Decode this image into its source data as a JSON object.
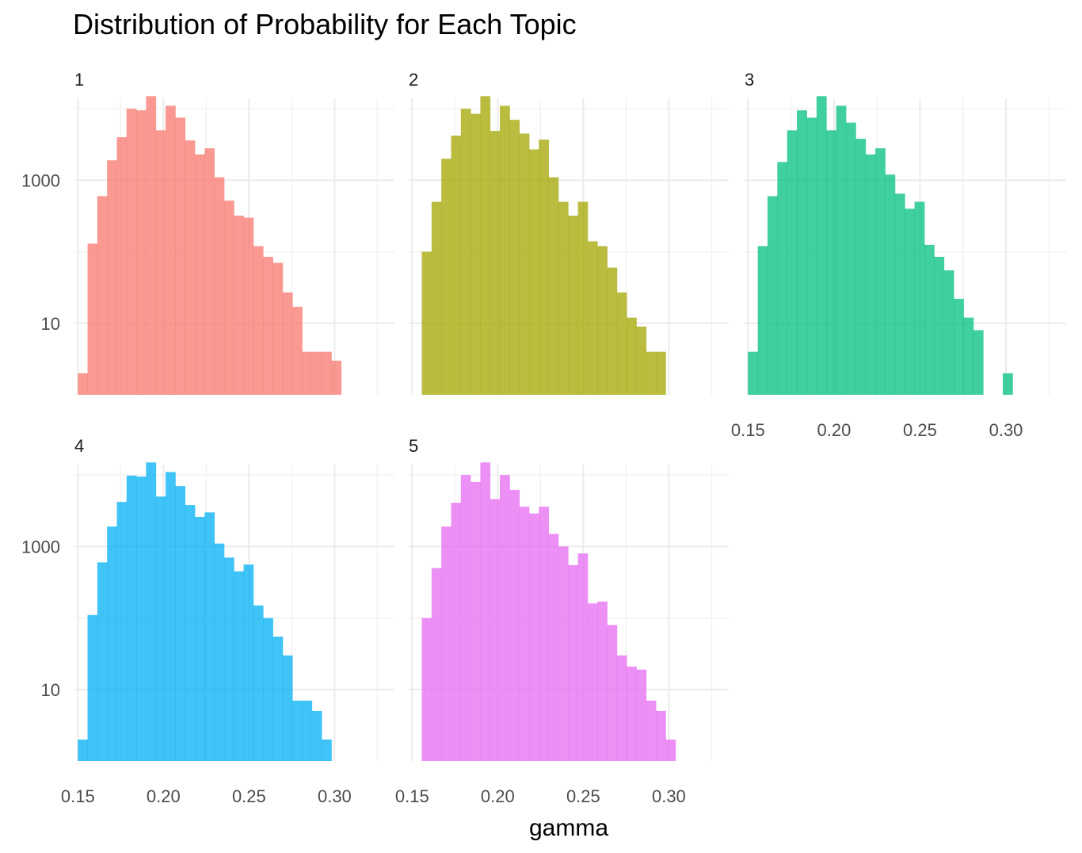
{
  "chart_data": {
    "type": "bar",
    "subtype": "faceted histogram",
    "title": "Distribution of Probability for Each Topic",
    "xlabel": "gamma",
    "ylabel": "",
    "y_scale": "log10",
    "xlim": [
      0.148,
      0.335
    ],
    "ylim": [
      1,
      14000
    ],
    "x_breaks": [
      0.15,
      0.2,
      0.25,
      0.3
    ],
    "x_tick_labels": [
      "0.15",
      "0.20",
      "0.25",
      "0.30"
    ],
    "y_breaks": [
      10,
      1000
    ],
    "y_tick_labels": [
      "10",
      "1000"
    ],
    "bin_width": 0.0057,
    "grid": true,
    "legend": "none",
    "facets": [
      {
        "label": "1",
        "color": "#F8766D",
        "bins": [
          {
            "x": 0.1528,
            "count": 2
          },
          {
            "x": 0.1585,
            "count": 130
          },
          {
            "x": 0.1642,
            "count": 600
          },
          {
            "x": 0.1699,
            "count": 1900
          },
          {
            "x": 0.1756,
            "count": 4000
          },
          {
            "x": 0.1813,
            "count": 10000
          },
          {
            "x": 0.187,
            "count": 9500
          },
          {
            "x": 0.1927,
            "count": 15000
          },
          {
            "x": 0.1984,
            "count": 5000
          },
          {
            "x": 0.2041,
            "count": 11000
          },
          {
            "x": 0.2098,
            "count": 7500
          },
          {
            "x": 0.2155,
            "count": 3600
          },
          {
            "x": 0.2212,
            "count": 2300
          },
          {
            "x": 0.2269,
            "count": 2800
          },
          {
            "x": 0.2326,
            "count": 1100
          },
          {
            "x": 0.2383,
            "count": 520
          },
          {
            "x": 0.244,
            "count": 320
          },
          {
            "x": 0.2497,
            "count": 300
          },
          {
            "x": 0.2554,
            "count": 120
          },
          {
            "x": 0.2611,
            "count": 85
          },
          {
            "x": 0.2668,
            "count": 70
          },
          {
            "x": 0.2725,
            "count": 27
          },
          {
            "x": 0.2782,
            "count": 17
          },
          {
            "x": 0.2839,
            "count": 4
          },
          {
            "x": 0.2896,
            "count": 4
          },
          {
            "x": 0.2953,
            "count": 4
          },
          {
            "x": 0.301,
            "count": 3
          }
        ]
      },
      {
        "label": "2",
        "color": "#A3A500",
        "bins": [
          {
            "x": 0.1585,
            "count": 100
          },
          {
            "x": 0.1642,
            "count": 500
          },
          {
            "x": 0.1699,
            "count": 2000
          },
          {
            "x": 0.1756,
            "count": 4200
          },
          {
            "x": 0.1813,
            "count": 10000
          },
          {
            "x": 0.187,
            "count": 8500
          },
          {
            "x": 0.1927,
            "count": 15000
          },
          {
            "x": 0.1984,
            "count": 4900
          },
          {
            "x": 0.2041,
            "count": 11000
          },
          {
            "x": 0.2098,
            "count": 7000
          },
          {
            "x": 0.2155,
            "count": 4500
          },
          {
            "x": 0.2212,
            "count": 2700
          },
          {
            "x": 0.2269,
            "count": 3700
          },
          {
            "x": 0.2326,
            "count": 1100
          },
          {
            "x": 0.2383,
            "count": 500
          },
          {
            "x": 0.244,
            "count": 320
          },
          {
            "x": 0.2497,
            "count": 500
          },
          {
            "x": 0.2554,
            "count": 140
          },
          {
            "x": 0.2611,
            "count": 120
          },
          {
            "x": 0.2668,
            "count": 60
          },
          {
            "x": 0.2725,
            "count": 27
          },
          {
            "x": 0.2782,
            "count": 12
          },
          {
            "x": 0.2839,
            "count": 9
          },
          {
            "x": 0.2896,
            "count": 4
          },
          {
            "x": 0.2953,
            "count": 4
          }
        ]
      },
      {
        "label": "3",
        "color": "#00BF7D",
        "bins": [
          {
            "x": 0.1528,
            "count": 4
          },
          {
            "x": 0.1585,
            "count": 120
          },
          {
            "x": 0.1642,
            "count": 600
          },
          {
            "x": 0.1699,
            "count": 1800
          },
          {
            "x": 0.1756,
            "count": 5000
          },
          {
            "x": 0.1813,
            "count": 9500
          },
          {
            "x": 0.187,
            "count": 7500
          },
          {
            "x": 0.1927,
            "count": 15000
          },
          {
            "x": 0.1984,
            "count": 5000
          },
          {
            "x": 0.2041,
            "count": 11000
          },
          {
            "x": 0.2098,
            "count": 6400
          },
          {
            "x": 0.2155,
            "count": 3800
          },
          {
            "x": 0.2212,
            "count": 2300
          },
          {
            "x": 0.2269,
            "count": 2800
          },
          {
            "x": 0.2326,
            "count": 1200
          },
          {
            "x": 0.2383,
            "count": 650
          },
          {
            "x": 0.244,
            "count": 400
          },
          {
            "x": 0.2497,
            "count": 500
          },
          {
            "x": 0.2554,
            "count": 125
          },
          {
            "x": 0.2611,
            "count": 85
          },
          {
            "x": 0.2668,
            "count": 55
          },
          {
            "x": 0.2725,
            "count": 22
          },
          {
            "x": 0.2782,
            "count": 12
          },
          {
            "x": 0.2839,
            "count": 8
          },
          {
            "x": 0.2896,
            "count": 0
          },
          {
            "x": 0.2953,
            "count": 0
          },
          {
            "x": 0.301,
            "count": 2
          }
        ]
      },
      {
        "label": "4",
        "color": "#00B0F6",
        "bins": [
          {
            "x": 0.1528,
            "count": 2
          },
          {
            "x": 0.1585,
            "count": 110
          },
          {
            "x": 0.1642,
            "count": 600
          },
          {
            "x": 0.1699,
            "count": 1900
          },
          {
            "x": 0.1756,
            "count": 4200
          },
          {
            "x": 0.1813,
            "count": 9800
          },
          {
            "x": 0.187,
            "count": 9500
          },
          {
            "x": 0.1927,
            "count": 15000
          },
          {
            "x": 0.1984,
            "count": 5000
          },
          {
            "x": 0.2041,
            "count": 11000
          },
          {
            "x": 0.2098,
            "count": 7000
          },
          {
            "x": 0.2155,
            "count": 3800
          },
          {
            "x": 0.2212,
            "count": 2600
          },
          {
            "x": 0.2269,
            "count": 3000
          },
          {
            "x": 0.2326,
            "count": 1100
          },
          {
            "x": 0.2383,
            "count": 700
          },
          {
            "x": 0.244,
            "count": 450
          },
          {
            "x": 0.2497,
            "count": 560
          },
          {
            "x": 0.2554,
            "count": 150
          },
          {
            "x": 0.2611,
            "count": 100
          },
          {
            "x": 0.2668,
            "count": 55
          },
          {
            "x": 0.2725,
            "count": 30
          },
          {
            "x": 0.2782,
            "count": 7
          },
          {
            "x": 0.2839,
            "count": 7
          },
          {
            "x": 0.2896,
            "count": 5
          },
          {
            "x": 0.2953,
            "count": 2
          }
        ]
      },
      {
        "label": "5",
        "color": "#E76BF3",
        "bins": [
          {
            "x": 0.1585,
            "count": 100
          },
          {
            "x": 0.1642,
            "count": 500
          },
          {
            "x": 0.1699,
            "count": 1900
          },
          {
            "x": 0.1756,
            "count": 4100
          },
          {
            "x": 0.1813,
            "count": 10000
          },
          {
            "x": 0.187,
            "count": 8000
          },
          {
            "x": 0.1927,
            "count": 15000
          },
          {
            "x": 0.1984,
            "count": 4600
          },
          {
            "x": 0.2041,
            "count": 10000
          },
          {
            "x": 0.2098,
            "count": 6200
          },
          {
            "x": 0.2155,
            "count": 3600
          },
          {
            "x": 0.2212,
            "count": 2900
          },
          {
            "x": 0.2269,
            "count": 3600
          },
          {
            "x": 0.2326,
            "count": 1500
          },
          {
            "x": 0.2383,
            "count": 1000
          },
          {
            "x": 0.244,
            "count": 550
          },
          {
            "x": 0.2497,
            "count": 800
          },
          {
            "x": 0.2554,
            "count": 160
          },
          {
            "x": 0.2611,
            "count": 170
          },
          {
            "x": 0.2668,
            "count": 80
          },
          {
            "x": 0.2725,
            "count": 30
          },
          {
            "x": 0.2782,
            "count": 21
          },
          {
            "x": 0.2839,
            "count": 19
          },
          {
            "x": 0.2896,
            "count": 7
          },
          {
            "x": 0.2953,
            "count": 5
          },
          {
            "x": 0.301,
            "count": 2
          }
        ]
      }
    ]
  }
}
